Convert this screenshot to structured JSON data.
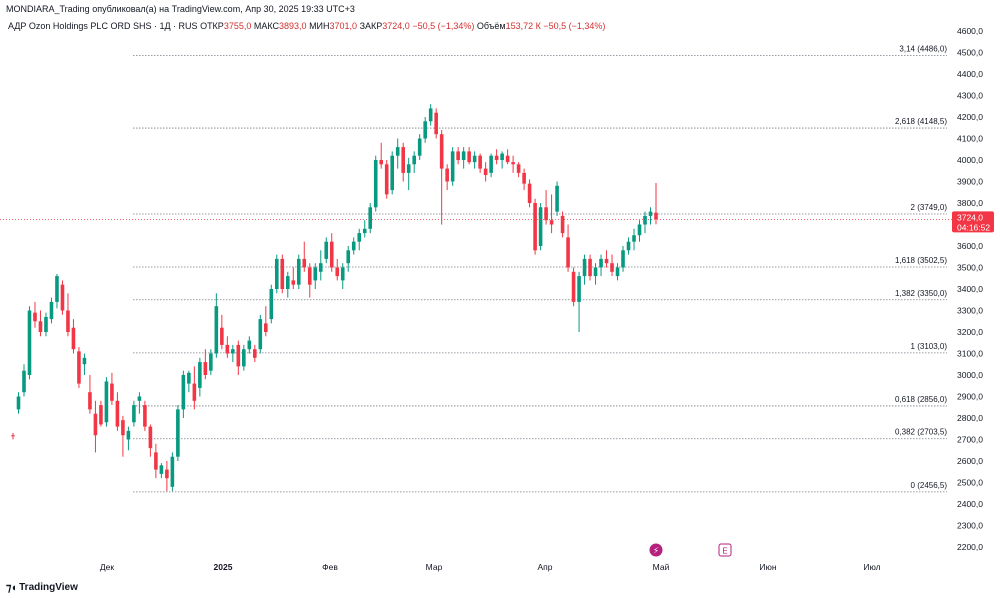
{
  "header": {
    "published": "MONDIARA_Trading опубликовал(а) на TradingView.com, Апр 30, 2025 19:33 UTC+3"
  },
  "legend": {
    "symbol": "АДР Ozon Holdings PLC ORD SHS · 1Д · RUS",
    "open_label": "ОТКР",
    "open": "3755,0",
    "high_label": "МАКС",
    "high": "3893,0",
    "low_label": "МИН",
    "low": "3701,0",
    "close_label": "ЗАКР",
    "close": "3724,0",
    "change": "−50,5 (−1,34%)",
    "volume_label": "Объём",
    "volume": "153,72 К",
    "volume_change": "−50,5 (−1,34%)"
  },
  "footer": {
    "brand": "TradingView",
    "logo": "tradingview-logo-icon"
  },
  "colors": {
    "up": "#089981",
    "down": "#f23645",
    "price_tag": "#f23645",
    "grid_text": "#131722",
    "fib_line": "#787b86"
  },
  "chart_data": {
    "type": "candlestick",
    "ylim": [
      2150,
      4650
    ],
    "y_ticks": [
      "4600,0",
      "4500,0",
      "4400,0",
      "4300,0",
      "4200,0",
      "4100,0",
      "4000,0",
      "3900,0",
      "3800,0",
      "3700,0",
      "3600,0",
      "3500,0",
      "3400,0",
      "3300,0",
      "3200,0",
      "3100,0",
      "3000,0",
      "2900,0",
      "2800,0",
      "2700,0",
      "2600,0",
      "2500,0",
      "2400,0",
      "2300,0",
      "2200,0"
    ],
    "x_labels": [
      "Дек",
      "2025",
      "Фев",
      "Мар",
      "Апр",
      "Май",
      "Июн",
      "Июл"
    ],
    "current_price": "3724,0",
    "countdown": "04:16:52",
    "fib_levels": [
      {
        "label": "3,14 (4486,0)",
        "value": 4486.0
      },
      {
        "label": "2,618 (4148,5)",
        "value": 4148.5
      },
      {
        "label": "2 (3749,0)",
        "value": 3749.0
      },
      {
        "label": "1,618 (3502,5)",
        "value": 3502.5
      },
      {
        "label": "1,382 (3350,0)",
        "value": 3350.0
      },
      {
        "label": "1 (3103,0)",
        "value": 3103.0
      },
      {
        "label": "0,618 (2856,0)",
        "value": 2856.0
      },
      {
        "label": "0,382 (2703,5)",
        "value": 2703.5
      },
      {
        "label": "0 (2456,5)",
        "value": 2456.5
      }
    ],
    "candles": [
      [
        2720,
        2730,
        2700,
        2715
      ],
      [
        2840,
        2920,
        2820,
        2900
      ],
      [
        2920,
        3050,
        2900,
        3020
      ],
      [
        3000,
        3320,
        2980,
        3300
      ],
      [
        3290,
        3340,
        3220,
        3250
      ],
      [
        3250,
        3300,
        3180,
        3200
      ],
      [
        3200,
        3290,
        3180,
        3270
      ],
      [
        3260,
        3360,
        3240,
        3340
      ],
      [
        3340,
        3470,
        3310,
        3460
      ],
      [
        3420,
        3440,
        3280,
        3300
      ],
      [
        3300,
        3380,
        3180,
        3200
      ],
      [
        3220,
        3260,
        3100,
        3120
      ],
      [
        3110,
        3130,
        2940,
        2960
      ],
      [
        3050,
        3100,
        3000,
        3080
      ],
      [
        2920,
        3000,
        2820,
        2840
      ],
      [
        2820,
        2880,
        2640,
        2720
      ],
      [
        2860,
        2880,
        2760,
        2770
      ],
      [
        2780,
        2990,
        2760,
        2970
      ],
      [
        2960,
        3010,
        2860,
        2880
      ],
      [
        2880,
        2920,
        2740,
        2760
      ],
      [
        2790,
        2810,
        2620,
        2720
      ],
      [
        2700,
        2760,
        2650,
        2740
      ],
      [
        2780,
        2880,
        2760,
        2860
      ],
      [
        2880,
        2920,
        2820,
        2900
      ],
      [
        2860,
        2880,
        2740,
        2760
      ],
      [
        2760,
        2770,
        2620,
        2660
      ],
      [
        2640,
        2680,
        2520,
        2560
      ],
      [
        2540,
        2590,
        2520,
        2580
      ],
      [
        2560,
        2600,
        2460,
        2520
      ],
      [
        2480,
        2640,
        2460,
        2620
      ],
      [
        2620,
        2860,
        2600,
        2840
      ],
      [
        2840,
        3020,
        2800,
        3000
      ],
      [
        2960,
        3020,
        2920,
        3010
      ],
      [
        2960,
        3040,
        2840,
        2880
      ],
      [
        2940,
        3080,
        2900,
        3060
      ],
      [
        3060,
        3120,
        2980,
        3000
      ],
      [
        3020,
        3120,
        3000,
        3100
      ],
      [
        3100,
        3380,
        3080,
        3320
      ],
      [
        3220,
        3280,
        3120,
        3140
      ],
      [
        3140,
        3180,
        3080,
        3100
      ],
      [
        3100,
        3140,
        3060,
        3120
      ],
      [
        3140,
        3160,
        3000,
        3040
      ],
      [
        3040,
        3140,
        3020,
        3120
      ],
      [
        3120,
        3180,
        3100,
        3160
      ],
      [
        3120,
        3140,
        3060,
        3080
      ],
      [
        3120,
        3280,
        3100,
        3260
      ],
      [
        3240,
        3320,
        3180,
        3200
      ],
      [
        3260,
        3420,
        3240,
        3400
      ],
      [
        3400,
        3560,
        3380,
        3540
      ],
      [
        3540,
        3560,
        3380,
        3400
      ],
      [
        3400,
        3480,
        3360,
        3460
      ],
      [
        3440,
        3500,
        3400,
        3420
      ],
      [
        3420,
        3560,
        3400,
        3540
      ],
      [
        3540,
        3620,
        3480,
        3500
      ],
      [
        3500,
        3520,
        3360,
        3420
      ],
      [
        3440,
        3520,
        3400,
        3500
      ],
      [
        3480,
        3580,
        3440,
        3520
      ],
      [
        3540,
        3640,
        3520,
        3620
      ],
      [
        3620,
        3660,
        3480,
        3500
      ],
      [
        3500,
        3540,
        3440,
        3460
      ],
      [
        3440,
        3520,
        3400,
        3500
      ],
      [
        3520,
        3600,
        3480,
        3580
      ],
      [
        3580,
        3640,
        3560,
        3620
      ],
      [
        3620,
        3680,
        3580,
        3660
      ],
      [
        3660,
        3720,
        3640,
        3680
      ],
      [
        3680,
        3800,
        3660,
        3780
      ],
      [
        3780,
        4020,
        3760,
        4000
      ],
      [
        4000,
        4080,
        3960,
        3980
      ],
      [
        3980,
        4000,
        3820,
        3840
      ],
      [
        3860,
        4040,
        3840,
        4020
      ],
      [
        4020,
        4100,
        3960,
        4060
      ],
      [
        4060,
        4080,
        3900,
        3940
      ],
      [
        3940,
        4010,
        3860,
        3980
      ],
      [
        3980,
        4040,
        3940,
        4020
      ],
      [
        4020,
        4120,
        4000,
        4100
      ],
      [
        4100,
        4200,
        4080,
        4180
      ],
      [
        4180,
        4260,
        4160,
        4240
      ],
      [
        4220,
        4240,
        4100,
        4120
      ],
      [
        4120,
        4140,
        3700,
        3960
      ],
      [
        3960,
        3980,
        3860,
        3900
      ],
      [
        3900,
        4060,
        3880,
        4040
      ],
      [
        4040,
        4060,
        3980,
        4000
      ],
      [
        4000,
        4060,
        3960,
        4040
      ],
      [
        4040,
        4060,
        3980,
        3990
      ],
      [
        3990,
        4040,
        3960,
        4020
      ],
      [
        4020,
        4030,
        3940,
        3960
      ],
      [
        3960,
        3990,
        3900,
        3930
      ],
      [
        3940,
        4030,
        3920,
        4020
      ],
      [
        4020,
        4050,
        3980,
        4000
      ],
      [
        4000,
        4040,
        3960,
        4030
      ],
      [
        4020,
        4050,
        3980,
        3990
      ],
      [
        3990,
        4020,
        3940,
        3980
      ],
      [
        3980,
        3990,
        3920,
        3940
      ],
      [
        3940,
        3960,
        3860,
        3890
      ],
      [
        3890,
        3910,
        3780,
        3800
      ],
      [
        3800,
        3820,
        3560,
        3580
      ],
      [
        3600,
        3800,
        3580,
        3780
      ],
      [
        3780,
        3860,
        3700,
        3720
      ],
      [
        3720,
        3840,
        3660,
        3700
      ],
      [
        3760,
        3900,
        3740,
        3880
      ],
      [
        3740,
        3760,
        3640,
        3660
      ],
      [
        3640,
        3700,
        3480,
        3500
      ],
      [
        3480,
        3500,
        3320,
        3340
      ],
      [
        3340,
        3480,
        3200,
        3460
      ],
      [
        3460,
        3560,
        3420,
        3540
      ],
      [
        3540,
        3560,
        3440,
        3460
      ],
      [
        3460,
        3520,
        3420,
        3500
      ],
      [
        3500,
        3560,
        3460,
        3540
      ],
      [
        3540,
        3580,
        3500,
        3520
      ],
      [
        3520,
        3560,
        3460,
        3480
      ],
      [
        3460,
        3520,
        3440,
        3500
      ],
      [
        3500,
        3600,
        3480,
        3580
      ],
      [
        3580,
        3640,
        3560,
        3620
      ],
      [
        3620,
        3680,
        3580,
        3650
      ],
      [
        3650,
        3720,
        3620,
        3700
      ],
      [
        3700,
        3760,
        3660,
        3740
      ],
      [
        3740,
        3780,
        3700,
        3760
      ],
      [
        3755,
        3893,
        3701,
        3724
      ]
    ]
  }
}
